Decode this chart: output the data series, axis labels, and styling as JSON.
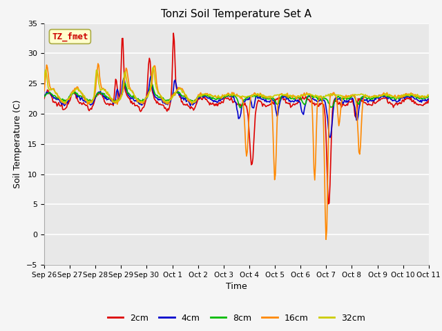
{
  "title": "Tonzi Soil Temperature Set A",
  "xlabel": "Time",
  "ylabel": "Soil Temperature (C)",
  "ylim": [
    -5,
    35
  ],
  "yticks": [
    -5,
    0,
    5,
    10,
    15,
    20,
    25,
    30,
    35
  ],
  "background_color": "#e8e8e8",
  "grid_color": "#ffffff",
  "annotation_label": "TZ_fmet",
  "annotation_color": "#cc0000",
  "annotation_bg": "#ffffcc",
  "series": {
    "2cm": {
      "color": "#dd0000",
      "lw": 1.2
    },
    "4cm": {
      "color": "#0000cc",
      "lw": 1.2
    },
    "8cm": {
      "color": "#00bb00",
      "lw": 1.2
    },
    "16cm": {
      "color": "#ff8800",
      "lw": 1.2
    },
    "32cm": {
      "color": "#cccc00",
      "lw": 1.2
    }
  },
  "xtick_labels": [
    "Sep 26",
    "Sep 27",
    "Sep 28",
    "Sep 29",
    "Sep 30",
    "Oct 1",
    "Oct 2",
    "Oct 3",
    "Oct 4",
    "Oct 5",
    "Oct 6",
    "Oct 7",
    "Oct 8",
    "Oct 9",
    "Oct 10",
    "Oct 11"
  ],
  "figsize": [
    6.4,
    4.8
  ],
  "dpi": 100
}
